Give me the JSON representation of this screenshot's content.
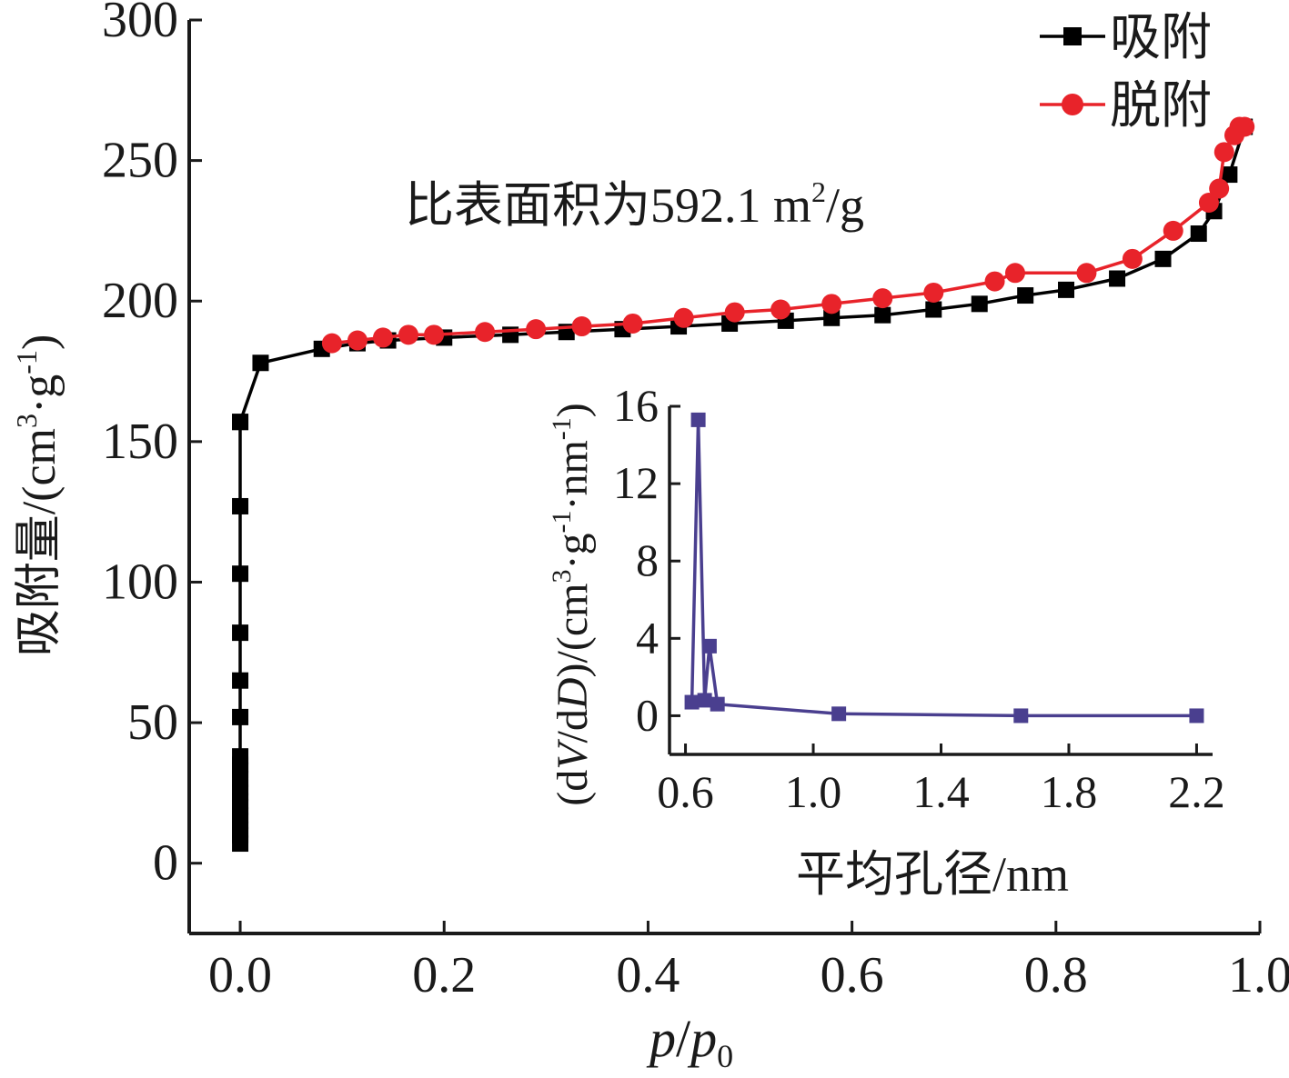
{
  "chart_data": [
    {
      "type": "line",
      "xlabel_parts": [
        "p",
        "/",
        "p",
        "0"
      ],
      "ylabel_parts": [
        "吸附量/(cm",
        "3",
        "·g",
        "-1",
        ")"
      ],
      "xlim": [
        -0.05,
        1.0
      ],
      "ylim": [
        -25,
        300
      ],
      "xticks": [
        0.0,
        0.2,
        0.4,
        0.6,
        0.8,
        1.0
      ],
      "xtick_labels": [
        "0.0",
        "0.2",
        "0.4",
        "0.6",
        "0.8",
        "1.0"
      ],
      "yticks": [
        0,
        50,
        100,
        150,
        200,
        250,
        300
      ],
      "ytick_labels": [
        "0",
        "50",
        "100",
        "150",
        "200",
        "250",
        "300"
      ],
      "legend_position": "top-right",
      "annotation_parts": [
        "比表面积为592.1 m",
        "2",
        "/g"
      ],
      "series": [
        {
          "name": "吸附",
          "color": "#000000",
          "marker": "square",
          "x": [
            0.0,
            0.0,
            0.0,
            0.0,
            0.0,
            0.0,
            0.0,
            0.0,
            0.0,
            0.0,
            0.0,
            0.0,
            0.0,
            0.0,
            0.0,
            0.0,
            0.0,
            0.0,
            0.0,
            0.0,
            0.02,
            0.08,
            0.115,
            0.145,
            0.2,
            0.265,
            0.32,
            0.375,
            0.43,
            0.48,
            0.535,
            0.58,
            0.63,
            0.68,
            0.725,
            0.77,
            0.81,
            0.86,
            0.905,
            0.94,
            0.955,
            0.97,
            0.985
          ],
          "y": [
            7,
            10,
            12,
            15,
            17,
            20,
            22,
            25,
            27,
            30,
            33,
            35,
            38,
            52,
            65,
            82,
            103,
            127,
            157,
            157,
            178,
            183,
            185,
            186,
            187,
            188,
            189,
            190,
            191,
            192,
            193,
            194,
            195,
            197,
            199,
            202,
            204,
            208,
            215,
            224,
            232,
            245,
            262
          ]
        },
        {
          "name": "脱附",
          "color": "#e8232a",
          "marker": "circle",
          "x": [
            0.985,
            0.98,
            0.975,
            0.965,
            0.96,
            0.95,
            0.915,
            0.875,
            0.83,
            0.76,
            0.74,
            0.68,
            0.63,
            0.58,
            0.53,
            0.485,
            0.435,
            0.385,
            0.335,
            0.29,
            0.24,
            0.19,
            0.165,
            0.14,
            0.115,
            0.09
          ],
          "y": [
            262,
            262,
            259,
            253,
            240,
            235,
            225,
            215,
            210,
            210,
            207,
            203,
            201,
            199,
            197,
            196,
            194,
            192,
            191,
            190,
            189,
            188,
            188,
            187,
            186,
            185
          ]
        }
      ]
    },
    {
      "type": "line",
      "xlabel": "平均孔径/nm",
      "ylabel_parts": [
        "(d",
        "V",
        "/d",
        "D",
        ")/(cm",
        "3",
        "·g",
        "-1",
        "·nm",
        "-1",
        ")"
      ],
      "xlim": [
        0.55,
        2.25
      ],
      "ylim": [
        -2,
        16
      ],
      "xticks": [
        0.6,
        1.0,
        1.4,
        1.8,
        2.2
      ],
      "xtick_labels": [
        "0.6",
        "1.0",
        "1.4",
        "1.8",
        "2.2"
      ],
      "yticks": [
        0,
        4,
        8,
        12,
        16
      ],
      "ytick_labels": [
        "0",
        "4",
        "8",
        "12",
        "16"
      ],
      "series": [
        {
          "color": "#4a3f8f",
          "marker": "square",
          "x": [
            0.62,
            0.64,
            0.66,
            0.675,
            0.7,
            1.08,
            1.65,
            2.2
          ],
          "y": [
            0.7,
            15.3,
            0.8,
            3.6,
            0.6,
            0.1,
            0.0,
            0.0
          ]
        }
      ]
    }
  ]
}
